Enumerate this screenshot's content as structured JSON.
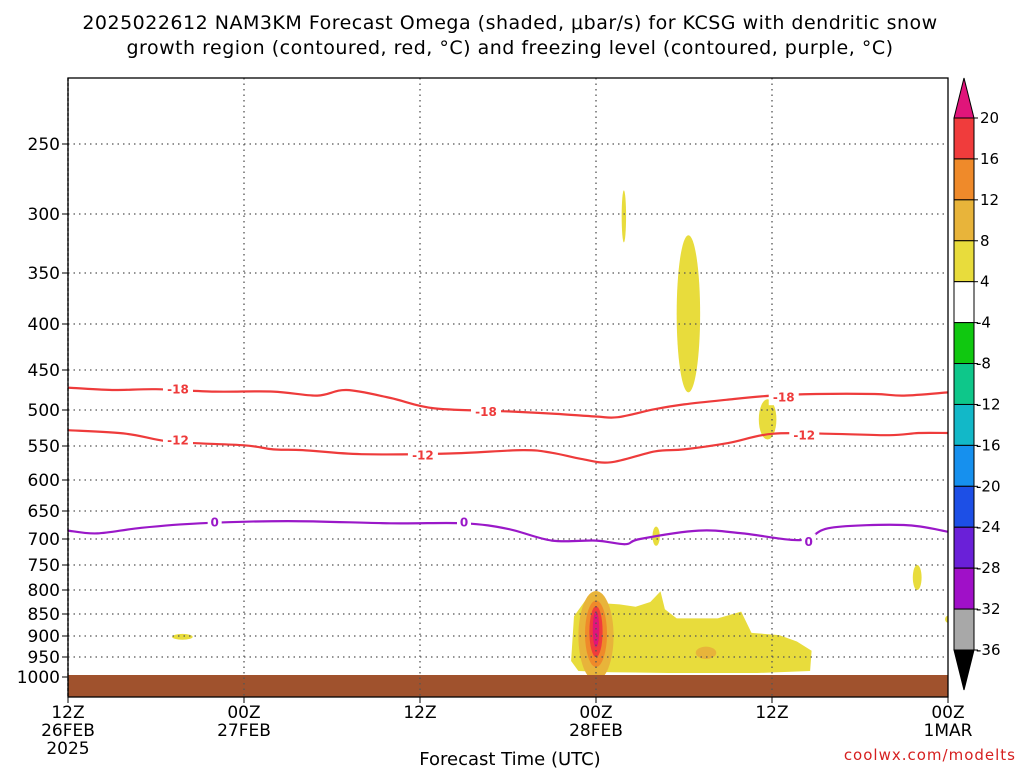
{
  "chart_data": {
    "type": "time-height cross section",
    "title_line1": "2025022612 NAM3KM Forecast Omega (shaded, μbar/s) for KCSG with dendritic snow",
    "title_line2": "growth region (contoured, red, °C) and freezing level (contoured, purple, °C)",
    "xlabel": "Forecast Time (UTC)",
    "credit": "coolwx.com/modelts",
    "pressure_ticks": [
      "250",
      "300",
      "350",
      "400",
      "450",
      "500",
      "550",
      "600",
      "650",
      "700",
      "750",
      "800",
      "850",
      "900",
      "950",
      "1000"
    ],
    "time_range_hours": [
      0,
      60
    ],
    "time_ticks": [
      {
        "hour": 0,
        "lines": [
          "12Z",
          "26FEB",
          "2025"
        ]
      },
      {
        "hour": 12,
        "lines": [
          "00Z",
          "27FEB"
        ]
      },
      {
        "hour": 24,
        "lines": [
          "12Z"
        ]
      },
      {
        "hour": 36,
        "lines": [
          "00Z",
          "28FEB"
        ]
      },
      {
        "hour": 48,
        "lines": [
          "12Z"
        ]
      },
      {
        "hour": 60,
        "lines": [
          "00Z",
          "1MAR"
        ]
      }
    ],
    "colorbar": {
      "levels": [
        "20",
        "16",
        "12",
        "8",
        "4",
        "-4",
        "-8",
        "-12",
        "-16",
        "-20",
        "-24",
        "-28",
        "-32",
        "-36"
      ],
      "colors": [
        "#e0157a",
        "#f03c3c",
        "#ef8a2a",
        "#e8b43a",
        "#e8dc3c",
        "#ffffff",
        "#10c810",
        "#0ec78a",
        "#12b8c8",
        "#1690ee",
        "#1d4fe6",
        "#6a20d8",
        "#a010c8",
        "#a8a8a8"
      ],
      "top_color": "#e0157a",
      "bottom_color": "#000000"
    },
    "contours": [
      {
        "name": "-18",
        "color": "#ee3b3b",
        "labels": [
          {
            "hour": 7.5,
            "p": 474
          },
          {
            "hour": 28.5,
            "p": 502
          },
          {
            "hour": 48.8,
            "p": 484
          }
        ],
        "points": [
          [
            0,
            472
          ],
          [
            3,
            475
          ],
          [
            6,
            474
          ],
          [
            10,
            477
          ],
          [
            14,
            477
          ],
          [
            17,
            482
          ],
          [
            19,
            475
          ],
          [
            22,
            485
          ],
          [
            25,
            498
          ],
          [
            30,
            502
          ],
          [
            33,
            505
          ],
          [
            36,
            509
          ],
          [
            37.5,
            510
          ],
          [
            40,
            499
          ],
          [
            42,
            493
          ],
          [
            45,
            487
          ],
          [
            48,
            482
          ],
          [
            51,
            480
          ],
          [
            55,
            480
          ],
          [
            57,
            482
          ],
          [
            60,
            478
          ]
        ]
      },
      {
        "name": "-12",
        "color": "#ee3b3b",
        "labels": [
          {
            "hour": 7.5,
            "p": 542
          },
          {
            "hour": 24.2,
            "p": 563
          },
          {
            "hour": 50.2,
            "p": 535
          }
        ],
        "points": [
          [
            0,
            528
          ],
          [
            4,
            533
          ],
          [
            7,
            544
          ],
          [
            12,
            549
          ],
          [
            14,
            555
          ],
          [
            16,
            556
          ],
          [
            20,
            562
          ],
          [
            26,
            561
          ],
          [
            31,
            556
          ],
          [
            33,
            560
          ],
          [
            35,
            569
          ],
          [
            37,
            574
          ],
          [
            40,
            558
          ],
          [
            42,
            555
          ],
          [
            45,
            546
          ],
          [
            48,
            533
          ],
          [
            52,
            533
          ],
          [
            56,
            535
          ],
          [
            58,
            532
          ],
          [
            60,
            532
          ]
        ]
      },
      {
        "name": "0",
        "color": "#9a18c8",
        "labels": [
          {
            "hour": 10,
            "p": 670
          },
          {
            "hour": 27,
            "p": 670
          },
          {
            "hour": 50.5,
            "p": 705
          }
        ],
        "points": [
          [
            0,
            685
          ],
          [
            2,
            690
          ],
          [
            5,
            680
          ],
          [
            9,
            672
          ],
          [
            15,
            668
          ],
          [
            22,
            672
          ],
          [
            27,
            672
          ],
          [
            30,
            682
          ],
          [
            33,
            703
          ],
          [
            36,
            703
          ],
          [
            38,
            710
          ],
          [
            39,
            700
          ],
          [
            43,
            685
          ],
          [
            46,
            690
          ],
          [
            50,
            702
          ],
          [
            52,
            680
          ],
          [
            57,
            675
          ],
          [
            60,
            687
          ]
        ]
      }
    ],
    "omega_features": [
      {
        "sign": "positive",
        "band": "4",
        "hour": 37.9,
        "p": 302,
        "hw_hours": 0.15,
        "hh_hpa": 22
      },
      {
        "sign": "positive",
        "band": "4",
        "hour": 42.3,
        "p": 390,
        "hw_hours": 0.8,
        "hh_hpa": 88
      },
      {
        "sign": "positive",
        "band": "4",
        "hour": 47.7,
        "p": 513,
        "hw_hours": 0.6,
        "hh_hpa": 28
      },
      {
        "sign": "positive",
        "band": "4",
        "hour": 40.1,
        "p": 695,
        "hw_hours": 0.25,
        "hh_hpa": 18
      },
      {
        "sign": "positive",
        "band": "4",
        "hour": 57.9,
        "p": 775,
        "hw_hours": 0.3,
        "hh_hpa": 25
      },
      {
        "sign": "positive",
        "band": "4",
        "hour": 60,
        "p": 862,
        "hw_hours": 0.2,
        "hh_hpa": 8
      },
      {
        "sign": "positive",
        "band": "4",
        "hour": 7.8,
        "p": 902,
        "hw_hours": 0.7,
        "hh_hpa": 7
      },
      {
        "sign": "negative",
        "band": "-4",
        "hour": 34.1,
        "p": 565,
        "hw_hours": 0.3,
        "hh_hpa": 42
      },
      {
        "sign": "negative",
        "band": "-4",
        "hour": 32.5,
        "p": 740,
        "hw_hours": 0.2,
        "hh_hpa": 25
      },
      {
        "sign": "negative",
        "band": "-4",
        "hour": 32.3,
        "p": 915,
        "hw_hours": 0.35,
        "hh_hpa": 22
      },
      {
        "sign": "negative",
        "band": "-4",
        "hour": 34.0,
        "p": 900,
        "hw_hours": 0.25,
        "hh_hpa": 10
      },
      {
        "sign": "negative",
        "band": "-4",
        "hour": 58.6,
        "p": 890,
        "hw_hours": 0.35,
        "hh_hpa": 8
      }
    ],
    "omega_main_region": {
      "band": "4",
      "outline": [
        [
          34.3,
          960
        ],
        [
          34.5,
          855
        ],
        [
          35.6,
          808
        ],
        [
          36.6,
          828
        ],
        [
          37.6,
          830
        ],
        [
          38.7,
          835
        ],
        [
          39.7,
          825
        ],
        [
          40.4,
          803
        ],
        [
          40.7,
          840
        ],
        [
          41.5,
          860
        ],
        [
          44.3,
          860
        ],
        [
          45.9,
          845
        ],
        [
          46.6,
          893
        ],
        [
          48.5,
          898
        ],
        [
          49.7,
          913
        ],
        [
          50.7,
          935
        ],
        [
          50.6,
          985
        ],
        [
          47.0,
          990
        ],
        [
          41.0,
          990
        ],
        [
          37.0,
          988
        ],
        [
          34.8,
          985
        ]
      ]
    },
    "omega_core": [
      {
        "band": "8",
        "hour": 36.0,
        "p": 900,
        "hw_hours": 1.2,
        "hh_hpa": 110
      },
      {
        "band": "12",
        "hour": 36.0,
        "p": 895,
        "hw_hours": 0.75,
        "hh_hpa": 80
      },
      {
        "band": "16",
        "hour": 36.0,
        "p": 890,
        "hw_hours": 0.45,
        "hh_hpa": 60
      },
      {
        "band": "20",
        "hour": 36.0,
        "p": 885,
        "hw_hours": 0.22,
        "hh_hpa": 42
      },
      {
        "band": "8",
        "hour": 43.5,
        "p": 940,
        "hw_hours": 0.7,
        "hh_hpa": 15
      }
    ],
    "omega_negative_region": {
      "band": "-4",
      "outline": [
        [
          14.0,
          955
        ],
        [
          14.0,
          990
        ],
        [
          18.8,
          990
        ],
        [
          18.5,
          978
        ],
        [
          18.0,
          955
        ],
        [
          17.3,
          950
        ],
        [
          17.3,
          940
        ],
        [
          16.2,
          940
        ],
        [
          16.0,
          950
        ]
      ]
    },
    "terrain_band": {
      "color": "#a0522d",
      "top_p": 995,
      "bottom_p": 1040
    }
  }
}
